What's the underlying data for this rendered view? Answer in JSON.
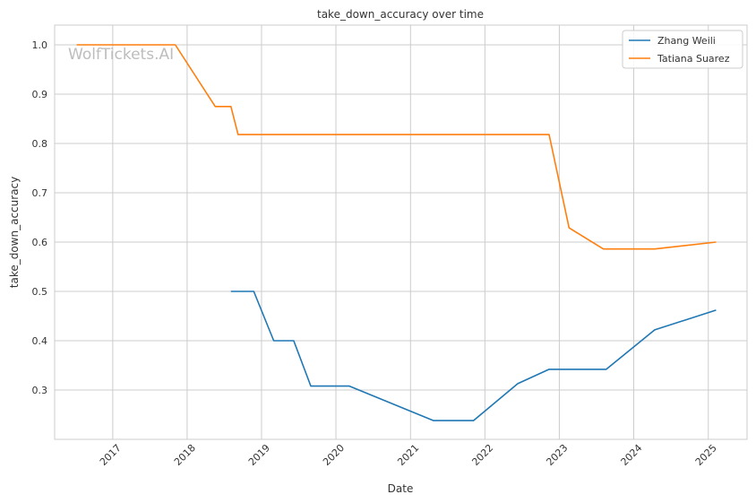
{
  "watermark": "WolfTickets.AI",
  "chart_data": {
    "type": "line",
    "title": "take_down_accuracy over time",
    "xlabel": "Date",
    "ylabel": "take_down_accuracy",
    "x_range": [
      "2016-03-22",
      "2025-07-10"
    ],
    "ylim": [
      0.2,
      1.04
    ],
    "y_ticks": [
      {
        "value": 0.3,
        "label": "0.3"
      },
      {
        "value": 0.4,
        "label": "0.4"
      },
      {
        "value": 0.5,
        "label": "0.5"
      },
      {
        "value": 0.6,
        "label": "0.6"
      },
      {
        "value": 0.7,
        "label": "0.7"
      },
      {
        "value": 0.8,
        "label": "0.8"
      },
      {
        "value": 0.9,
        "label": "0.9"
      },
      {
        "value": 1.0,
        "label": "1.0"
      }
    ],
    "x_ticks": [
      {
        "date": "2017-01-01",
        "label": "2017"
      },
      {
        "date": "2018-01-01",
        "label": "2018"
      },
      {
        "date": "2019-01-01",
        "label": "2019"
      },
      {
        "date": "2020-01-01",
        "label": "2020"
      },
      {
        "date": "2021-01-01",
        "label": "2021"
      },
      {
        "date": "2022-01-01",
        "label": "2022"
      },
      {
        "date": "2023-01-01",
        "label": "2023"
      },
      {
        "date": "2024-01-01",
        "label": "2024"
      },
      {
        "date": "2025-01-01",
        "label": "2025"
      }
    ],
    "grid": true,
    "legend_position": "top-right",
    "series": [
      {
        "name": "Zhang Weili",
        "color": "#1f77b4",
        "points": [
          {
            "x": "2018-08-04",
            "y": 0.5
          },
          {
            "x": "2018-11-24",
            "y": 0.5
          },
          {
            "x": "2019-03-02",
            "y": 0.4
          },
          {
            "x": "2019-06-08",
            "y": 0.4
          },
          {
            "x": "2019-08-31",
            "y": 0.308
          },
          {
            "x": "2020-03-07",
            "y": 0.308
          },
          {
            "x": "2021-04-24",
            "y": 0.238
          },
          {
            "x": "2021-11-06",
            "y": 0.238
          },
          {
            "x": "2022-06-11",
            "y": 0.313
          },
          {
            "x": "2022-11-12",
            "y": 0.342
          },
          {
            "x": "2023-08-19",
            "y": 0.342
          },
          {
            "x": "2024-04-13",
            "y": 0.422
          },
          {
            "x": "2025-02-08",
            "y": 0.462
          }
        ]
      },
      {
        "name": "Tatiana Suarez",
        "color": "#ff7f0e",
        "points": [
          {
            "x": "2016-07-08",
            "y": 1.0
          },
          {
            "x": "2017-11-04",
            "y": 1.0
          },
          {
            "x": "2018-05-19",
            "y": 0.875
          },
          {
            "x": "2018-08-04",
            "y": 0.875
          },
          {
            "x": "2018-09-08",
            "y": 0.818
          },
          {
            "x": "2022-11-12",
            "y": 0.818
          },
          {
            "x": "2023-02-18",
            "y": 0.629
          },
          {
            "x": "2023-08-05",
            "y": 0.586
          },
          {
            "x": "2024-04-13",
            "y": 0.586
          },
          {
            "x": "2025-02-08",
            "y": 0.6
          }
        ]
      }
    ]
  }
}
